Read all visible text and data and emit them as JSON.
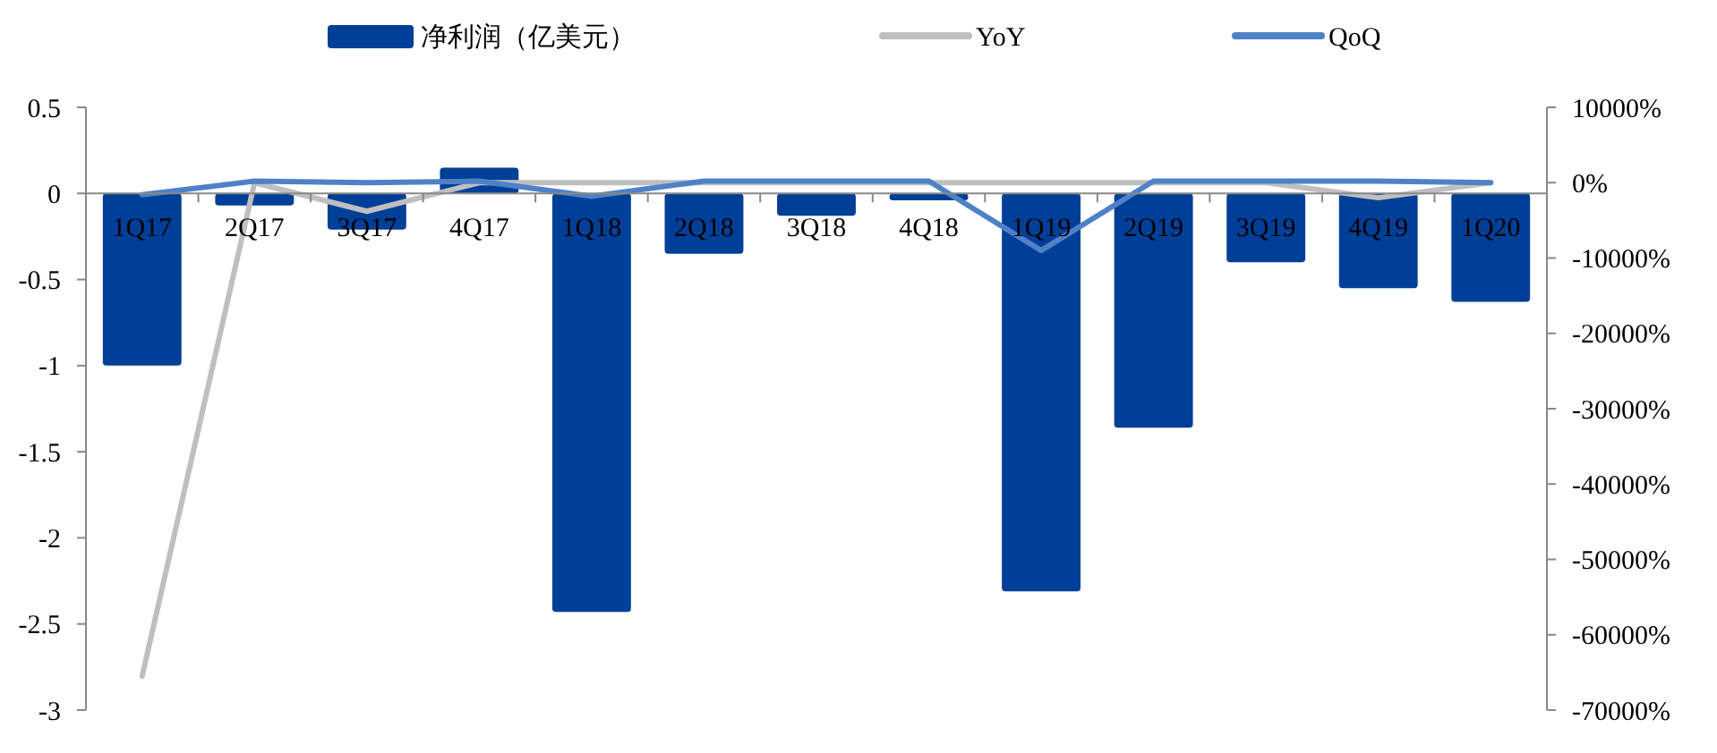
{
  "chart_data": {
    "type": "bar",
    "categories": [
      "1Q17",
      "2Q17",
      "3Q17",
      "4Q17",
      "1Q18",
      "2Q18",
      "3Q18",
      "4Q18",
      "1Q19",
      "2Q19",
      "3Q19",
      "4Q19",
      "1Q20"
    ],
    "series": [
      {
        "name": "净利润（亿美元）",
        "color": "#003f98",
        "values": [
          -1.0,
          -0.07,
          -0.21,
          0.15,
          -2.43,
          -0.35,
          -0.13,
          -0.04,
          -2.31,
          -1.36,
          -0.4,
          -0.55,
          -0.63
        ]
      },
      {
        "name": "YoY",
        "type": "line",
        "axis": "y2",
        "color": "#bfbfbf",
        "values": [
          -65500,
          0,
          -3800,
          0,
          0,
          0,
          0,
          0,
          0,
          0,
          0,
          -2000,
          0
        ]
      },
      {
        "name": "QoQ",
        "type": "line",
        "axis": "y2",
        "color": "#4f81c7",
        "values": [
          -1600,
          200,
          0,
          200,
          -1800,
          200,
          200,
          200,
          -9000,
          200,
          200,
          200,
          0
        ]
      }
    ],
    "ylim": [
      -3,
      0.5
    ],
    "yticks": [
      0.5,
      0,
      -0.5,
      -1,
      -1.5,
      -2,
      -2.5,
      -3
    ],
    "y2lim": [
      -70000,
      10000
    ],
    "y2ticks": [
      {
        "value": 10000,
        "label": "10000%"
      },
      {
        "value": 0,
        "label": "0%"
      },
      {
        "value": -10000,
        "label": "-10000%"
      },
      {
        "value": -20000,
        "label": "-20000%"
      },
      {
        "value": -30000,
        "label": "-30000%"
      },
      {
        "value": -40000,
        "label": "-40000%"
      },
      {
        "value": -50000,
        "label": "-50000%"
      },
      {
        "value": -60000,
        "label": "-60000%"
      },
      {
        "value": -70000,
        "label": "-70000%"
      }
    ],
    "legend": "top",
    "grid": false
  }
}
